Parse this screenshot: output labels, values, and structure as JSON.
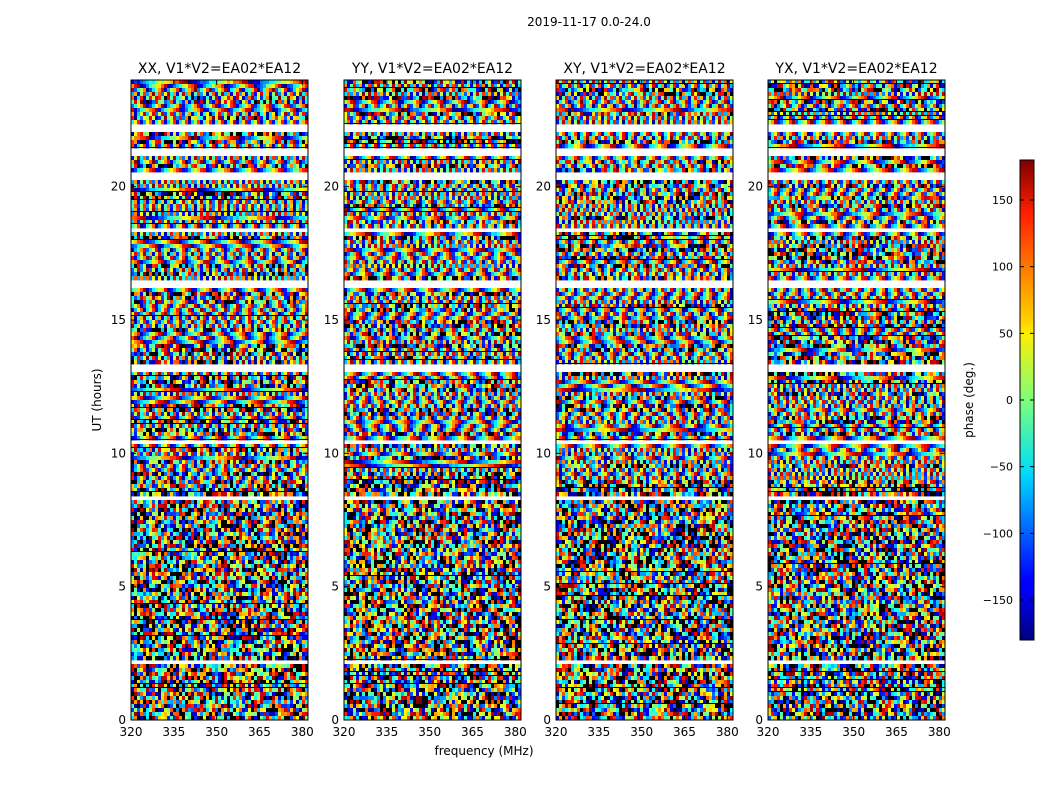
{
  "chart_data": {
    "type": "heatmap",
    "title": "2019-11-17 0.0-24.0",
    "xlabel": "frequency (MHz)",
    "ylabel": "UT (hours)",
    "xlim": [
      320,
      382
    ],
    "ylim": [
      0,
      24
    ],
    "xticks": [
      320,
      335,
      350,
      365,
      380
    ],
    "yticks": [
      0,
      5,
      10,
      15,
      20
    ],
    "panels": [
      {
        "name": "XX",
        "title": "XX, V1*V2=EA02*EA12"
      },
      {
        "name": "YY",
        "title": "YY, V1*V2=EA02*EA12"
      },
      {
        "name": "XY",
        "title": "XY, V1*V2=EA02*EA12"
      },
      {
        "name": "YX",
        "title": "YX, V1*V2=EA02*EA12"
      }
    ],
    "blank_bands_hours": [
      [
        22.0,
        22.3
      ],
      [
        21.2,
        21.4
      ],
      [
        20.3,
        20.55
      ],
      [
        18.3,
        18.5
      ],
      [
        16.25,
        16.5
      ],
      [
        13.1,
        13.3
      ],
      [
        10.3,
        10.5
      ],
      [
        8.3,
        8.45
      ],
      [
        2.1,
        2.3
      ]
    ],
    "colorbar": {
      "label": "phase (deg.)",
      "range": [
        -180,
        180
      ],
      "ticks": [
        150,
        100,
        50,
        0,
        -50,
        -100,
        -150
      ],
      "tick_labels": [
        "150",
        "100",
        "50",
        "0",
        "−50",
        "−100",
        "−150"
      ],
      "colormap": "jet"
    }
  }
}
